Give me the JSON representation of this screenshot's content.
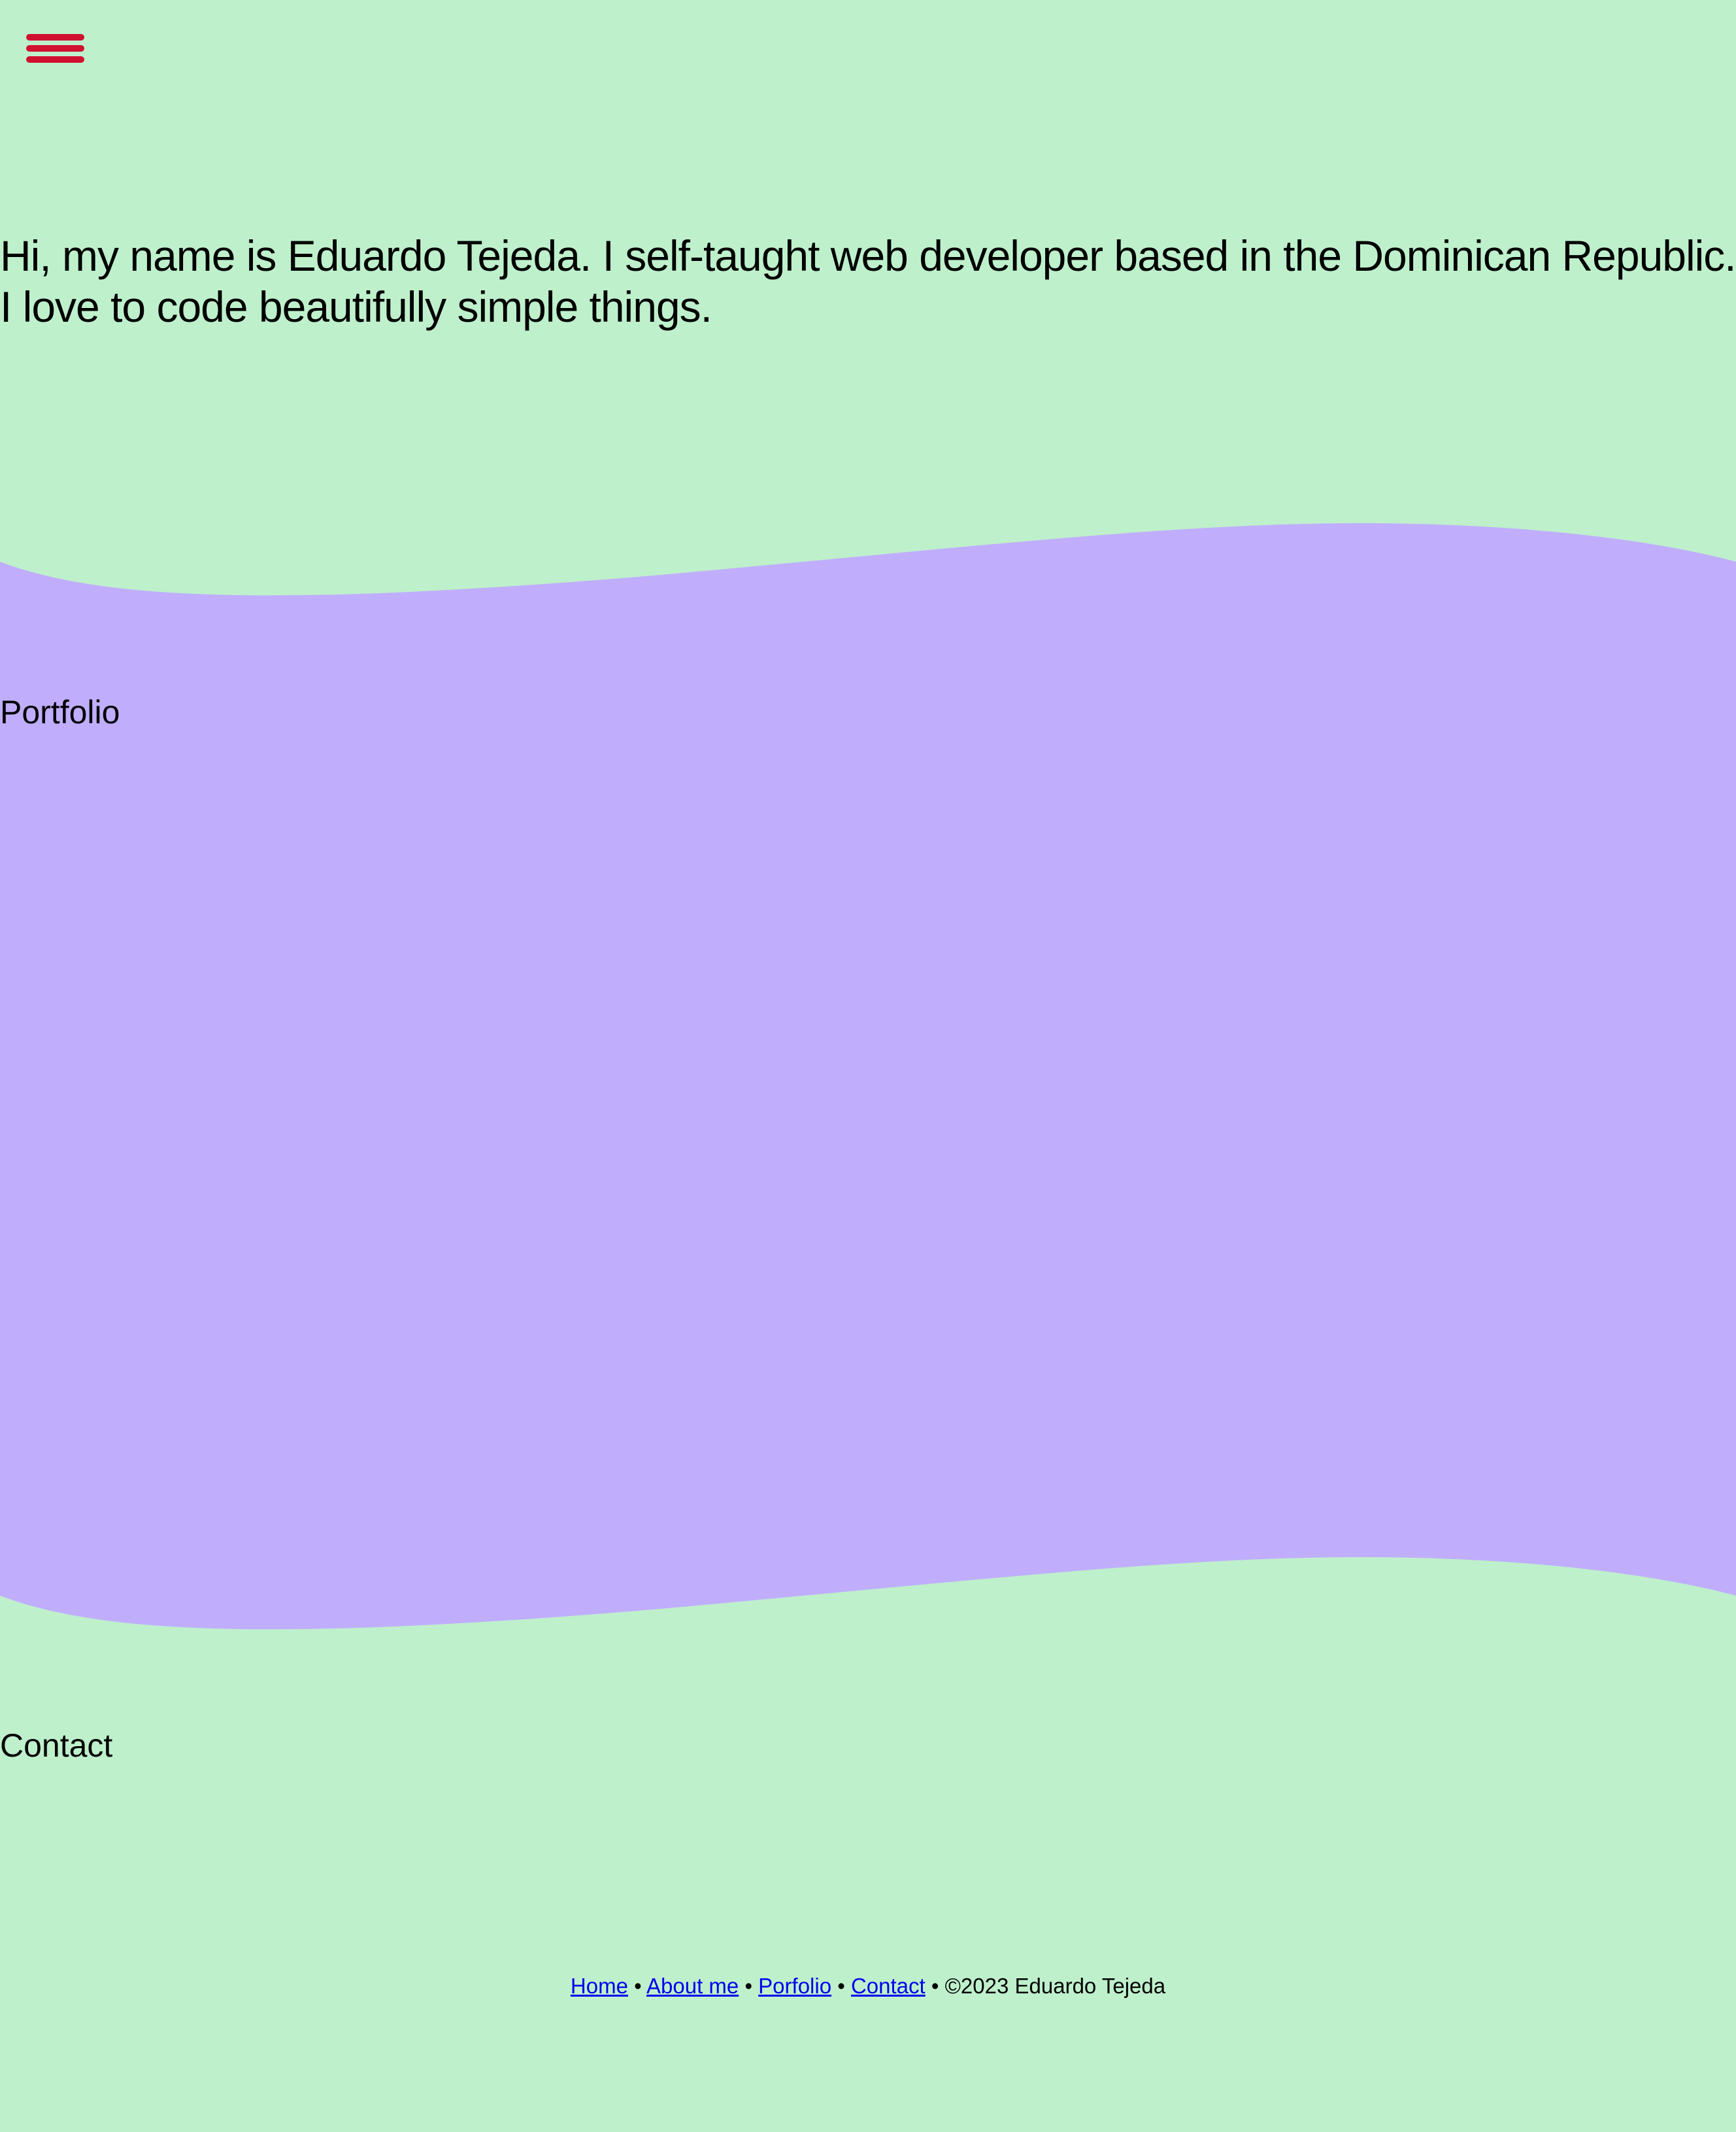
{
  "hero": {
    "lines": [
      "Hi, my name is Eduardo Tejeda. I self-taught web developer based in the Dominican Republic.",
      "I love to code beautifully simple things."
    ]
  },
  "sections": {
    "portfolio": "Portfolio",
    "contact": "Contact"
  },
  "footer": {
    "links": [
      "Home",
      "About me",
      "Porfolio",
      "Contact"
    ],
    "separator": "•",
    "copyright": "©2023 Eduardo Tejeda"
  }
}
